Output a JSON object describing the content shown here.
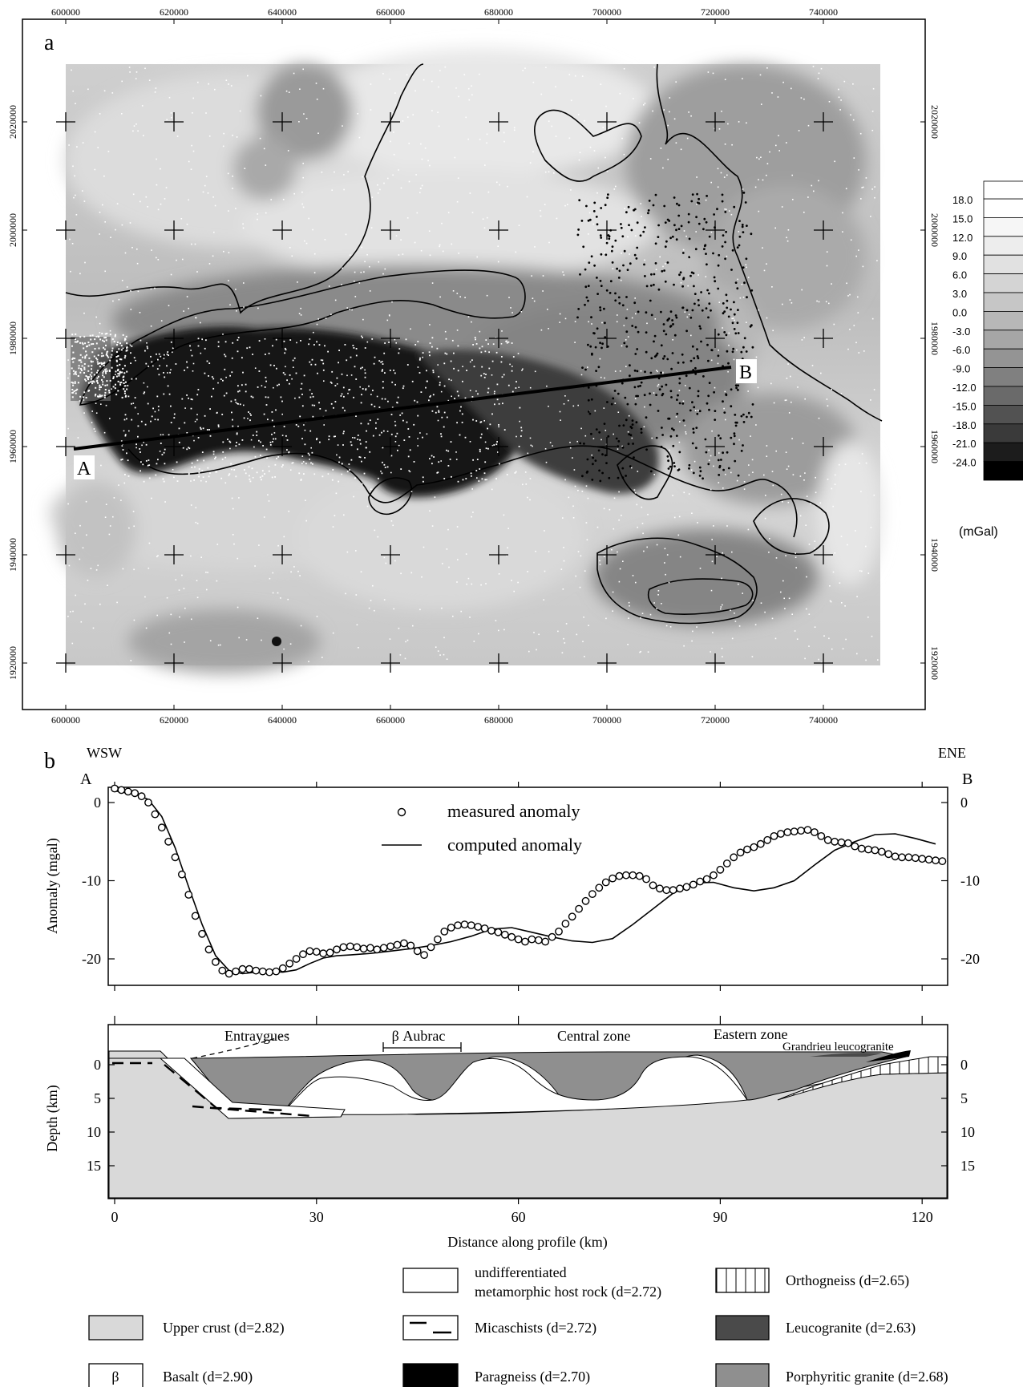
{
  "panel_a": {
    "label": "a",
    "x_ticks": [
      "600000",
      "620000",
      "640000",
      "660000",
      "680000",
      "700000",
      "720000",
      "740000"
    ],
    "y_ticks_left": [
      "2020000",
      "2000000",
      "1980000",
      "1960000",
      "1940000",
      "1920000"
    ],
    "y_ticks_right": [
      "2020000",
      "2000000",
      "1980000",
      "1960000",
      "1940000",
      "1920000"
    ],
    "point_a": "A",
    "point_b": "B",
    "colorbar": {
      "labels": [
        "18.0",
        "15.0",
        "12.0",
        "9.0",
        "6.0",
        "3.0",
        "0.0",
        "-3.0",
        "-6.0",
        "-9.0",
        "-12.0",
        "-15.0",
        "-18.0",
        "-21.0",
        "-24.0"
      ],
      "unit": "(mGal)",
      "colors": [
        "#ffffff",
        "#f6f6f6",
        "#ededed",
        "#e1e1e1",
        "#d4d4d4",
        "#c6c6c6",
        "#b7b7b7",
        "#a6a6a6",
        "#949494",
        "#808080",
        "#6a6a6a",
        "#525252",
        "#3a3a3a",
        "#1c1c1c",
        "#000000"
      ]
    }
  },
  "panel_b": {
    "label": "b",
    "wsw": "WSW",
    "ene": "ENE",
    "point_a": "A",
    "point_b": "B",
    "ylabel_anomaly": "Anomaly (mgal)",
    "ylabel_depth": "Depth (km)",
    "xlabel": "Distance along profile (km)",
    "legend_measured": "measured anomaly",
    "legend_computed": "computed anomaly",
    "zones": {
      "entraygues": "Entraygues",
      "aubrac": "β Aubrac",
      "central": "Central zone",
      "eastern": "Eastern zone",
      "grandrieu": "Grandrieu leucogranite"
    }
  },
  "legend": [
    {
      "id": "host",
      "line1": "undifferentiated",
      "line2": "metamorphic host rock (d=2.72)"
    },
    {
      "id": "ortho",
      "line1": "Orthogneiss (d=2.65)"
    },
    {
      "id": "upper",
      "line1": "Upper crust (d=2.82)"
    },
    {
      "id": "mica",
      "line1": "Micaschists (d=2.72)"
    },
    {
      "id": "leuco",
      "line1": "Leucogranite (d=2.63)"
    },
    {
      "id": "basalt",
      "line1": "Basalt (d=2.90)",
      "symbol": "β"
    },
    {
      "id": "para",
      "line1": "Paragneiss (d=2.70)"
    },
    {
      "id": "porph",
      "line1": "Porphyritic granite (d=2.68)"
    }
  ],
  "chart_data": [
    {
      "type": "line",
      "title": "",
      "xlabel": "Distance along profile (km)",
      "ylabel": "Anomaly (mgal)",
      "xlim": [
        0,
        124
      ],
      "ylim": [
        -22,
        2
      ],
      "x_ticks": [
        0,
        30,
        60,
        90,
        120
      ],
      "y_ticks": [
        0,
        -10,
        -20
      ],
      "series": [
        {
          "name": "measured anomaly",
          "style": "open-circles",
          "x": [
            0,
            1,
            2,
            3,
            4,
            5,
            6,
            7,
            8,
            9,
            10,
            11,
            12,
            13,
            14,
            15,
            16,
            17,
            18,
            19,
            20,
            21,
            22,
            23,
            24,
            25,
            26,
            27,
            28,
            29,
            30,
            31,
            32,
            33,
            34,
            35,
            36,
            37,
            38,
            39,
            40,
            41,
            42,
            43,
            44,
            45,
            46,
            47,
            48,
            49,
            50,
            51,
            52,
            53,
            54,
            55,
            56,
            57,
            58,
            59,
            60,
            61,
            62,
            63,
            64,
            65,
            66,
            67,
            68,
            69,
            70,
            71,
            72,
            73,
            74,
            75,
            76,
            77,
            78,
            79,
            80,
            81,
            82,
            83,
            84,
            85,
            86,
            87,
            88,
            89,
            90,
            91,
            92,
            93,
            94,
            95,
            96,
            97,
            98,
            99,
            100,
            101,
            102,
            103,
            104,
            105,
            106,
            107,
            108,
            109,
            110,
            111,
            112,
            113,
            114,
            115,
            116,
            117,
            118,
            119,
            120,
            121,
            122,
            123
          ],
          "y": [
            1.8,
            1.6,
            1.4,
            1.2,
            0.8,
            0,
            -1.5,
            -3.2,
            -5.0,
            -7.0,
            -9.2,
            -11.8,
            -14.5,
            -16.8,
            -18.8,
            -20.4,
            -21.5,
            -21.9,
            -21.6,
            -21.3,
            -21.3,
            -21.5,
            -21.6,
            -21.7,
            -21.6,
            -21.2,
            -20.6,
            -20.0,
            -19.4,
            -19.0,
            -19.1,
            -19.3,
            -19.2,
            -18.8,
            -18.5,
            -18.4,
            -18.5,
            -18.7,
            -18.6,
            -18.8,
            -18.6,
            -18.4,
            -18.2,
            -18.0,
            -18.3,
            -19.0,
            -19.5,
            -18.5,
            -17.5,
            -16.5,
            -16.0,
            -15.7,
            -15.6,
            -15.7,
            -15.9,
            -16.1,
            -16.4,
            -16.6,
            -16.9,
            -17.2,
            -17.5,
            -17.8,
            -17.5,
            -17.6,
            -17.8,
            -17.2,
            -16.5,
            -15.5,
            -14.6,
            -13.6,
            -12.6,
            -11.7,
            -10.9,
            -10.2,
            -9.7,
            -9.4,
            -9.3,
            -9.3,
            -9.4,
            -9.8,
            -10.6,
            -11.0,
            -11.2,
            -11.2,
            -11.0,
            -10.8,
            -10.5,
            -10.1,
            -9.8,
            -9.3,
            -8.6,
            -7.8,
            -7.0,
            -6.4,
            -6.0,
            -5.7,
            -5.3,
            -4.8,
            -4.3,
            -4.0,
            -3.8,
            -3.7,
            -3.6,
            -3.5,
            -3.8,
            -4.3,
            -4.8,
            -5.0,
            -5.1,
            -5.2,
            -5.6,
            -5.9,
            -6.0,
            -6.1,
            -6.3,
            -6.6,
            -6.9,
            -7.0,
            -7.0,
            -7.1,
            -7.2,
            -7.3,
            -7.4,
            -7.5
          ]
        },
        {
          "name": "computed anomaly",
          "style": "line",
          "x": [
            0,
            3,
            5,
            7,
            9,
            11,
            13,
            15,
            17,
            19,
            21,
            23,
            25,
            27,
            29,
            31,
            33,
            35,
            38,
            41,
            44,
            47,
            50,
            53,
            56,
            59,
            62,
            65,
            68,
            71,
            74,
            77,
            80,
            83,
            86,
            89,
            92,
            95,
            98,
            101,
            104,
            107,
            110,
            113,
            116,
            119,
            122
          ],
          "y": [
            1.5,
            1.1,
            0.4,
            -1.8,
            -5.8,
            -10.8,
            -15.6,
            -19.6,
            -21.5,
            -21.9,
            -21.7,
            -21.6,
            -21.7,
            -21.4,
            -20.6,
            -19.9,
            -19.6,
            -19.5,
            -19.3,
            -19.0,
            -18.7,
            -18.3,
            -17.8,
            -17.1,
            -16.2,
            -16.0,
            -16.6,
            -17.2,
            -17.7,
            -17.9,
            -17.4,
            -15.6,
            -13.6,
            -11.6,
            -10.3,
            -10.2,
            -10.9,
            -11.3,
            -10.9,
            -10.0,
            -8.0,
            -6.1,
            -5.0,
            -4.1,
            -4.0,
            -4.6,
            -5.3
          ]
        }
      ]
    }
  ]
}
